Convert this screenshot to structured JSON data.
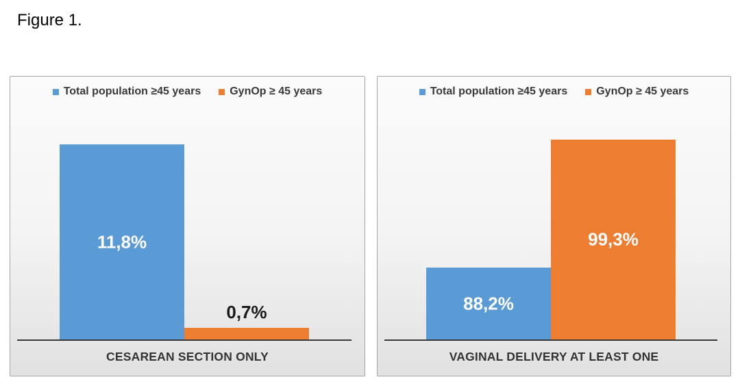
{
  "figure_label": "Figure 1.",
  "colors": {
    "series_blue": "#5B9BD5",
    "series_orange": "#ED7D31",
    "axis_line": "#383838",
    "value_label_on_bar": "#FFFFFF",
    "value_label_outside": "#1A1A1A",
    "panel_border": "#A6A6A6",
    "legend_text": "#383838"
  },
  "chart_data": [
    {
      "type": "bar",
      "title": "",
      "categories": [
        "CESAREAN SECTION ONLY"
      ],
      "series": [
        {
          "name": "Total population ≥45 years",
          "values": [
            11.8
          ],
          "data_label": "11,8%",
          "color": "#5B9BD5",
          "label_position": "inside"
        },
        {
          "name": "GynOp ≥ 45 years",
          "values": [
            0.7
          ],
          "data_label": "0,7%",
          "color": "#ED7D31",
          "label_position": "outside"
        }
      ],
      "ylim": [
        0,
        14
      ],
      "y_axis_visible": false,
      "grid": false,
      "legend_position": "top",
      "value_format": "percent, comma decimal separator"
    },
    {
      "type": "bar",
      "title": "",
      "categories": [
        "VAGINAL DELIVERY AT LEAST ONE"
      ],
      "series": [
        {
          "name": "Total population ≥45 years",
          "values": [
            88.2
          ],
          "data_label": "88,2%",
          "color": "#5B9BD5",
          "label_position": "inside"
        },
        {
          "name": "GynOp ≥ 45 years",
          "values": [
            99.3
          ],
          "data_label": "99,3%",
          "color": "#ED7D31",
          "label_position": "inside"
        }
      ],
      "ylim": [
        82,
        102
      ],
      "y_axis_visible": false,
      "grid": false,
      "legend_position": "top",
      "value_format": "percent, comma decimal separator"
    }
  ]
}
